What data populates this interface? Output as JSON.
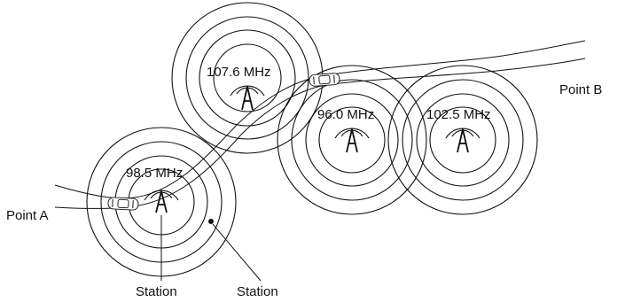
{
  "endpoints": {
    "start_label": "Point A",
    "end_label": "Point B"
  },
  "stations": [
    {
      "frequency": "98.5 MHz"
    },
    {
      "frequency": "107.6 MHz"
    },
    {
      "frequency": "96.0 MHz"
    },
    {
      "frequency": "102.5 MHz"
    }
  ],
  "callouts": [
    {
      "text": "Station"
    },
    {
      "text": "Station"
    }
  ],
  "icons": {
    "station": "radio-tower-icon",
    "vehicle": "car-icon"
  }
}
